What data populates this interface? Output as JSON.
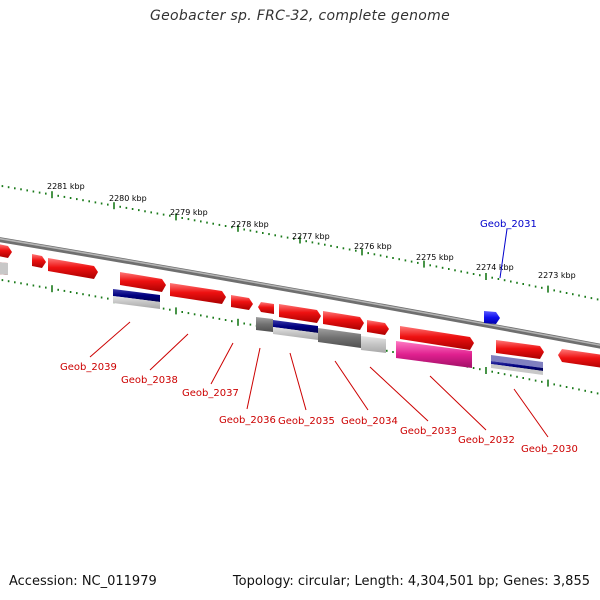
{
  "title": "Geobacter sp. FRC-32, complete genome",
  "footer": {
    "accession": "Accession: NC_011979",
    "summary": "Topology: circular; Length: 4,304,501 bp; Genes: 3,855"
  },
  "colors": {
    "backbone": "#8a8a8a",
    "tick": "#1a7a1a",
    "gene_forward": "#ee1111",
    "gene_highlight": "#1111ee",
    "label_red": "#cc0000",
    "label_blue": "#0000cc",
    "navy": "#000080",
    "magenta": "#e0208f",
    "gray_dark": "#777777",
    "gray_light": "#c8c8c8"
  },
  "kbp_labels": [
    "2281 kbp",
    "2280 kbp",
    "2279 kbp",
    "2278 kbp",
    "2277 kbp",
    "2276 kbp",
    "2275 kbp",
    "2274 kbp",
    "2273 kbp"
  ],
  "gene_labels": [
    {
      "id": "Geob_2039",
      "color": "red"
    },
    {
      "id": "Geob_2038",
      "color": "red"
    },
    {
      "id": "Geob_2037",
      "color": "red"
    },
    {
      "id": "Geob_2036",
      "color": "red"
    },
    {
      "id": "Geob_2035",
      "color": "red"
    },
    {
      "id": "Geob_2034",
      "color": "red"
    },
    {
      "id": "Geob_2033",
      "color": "red"
    },
    {
      "id": "Geob_2032",
      "color": "red"
    },
    {
      "id": "Geob_2030",
      "color": "red"
    },
    {
      "id": "Geob_2031",
      "color": "blue"
    }
  ]
}
